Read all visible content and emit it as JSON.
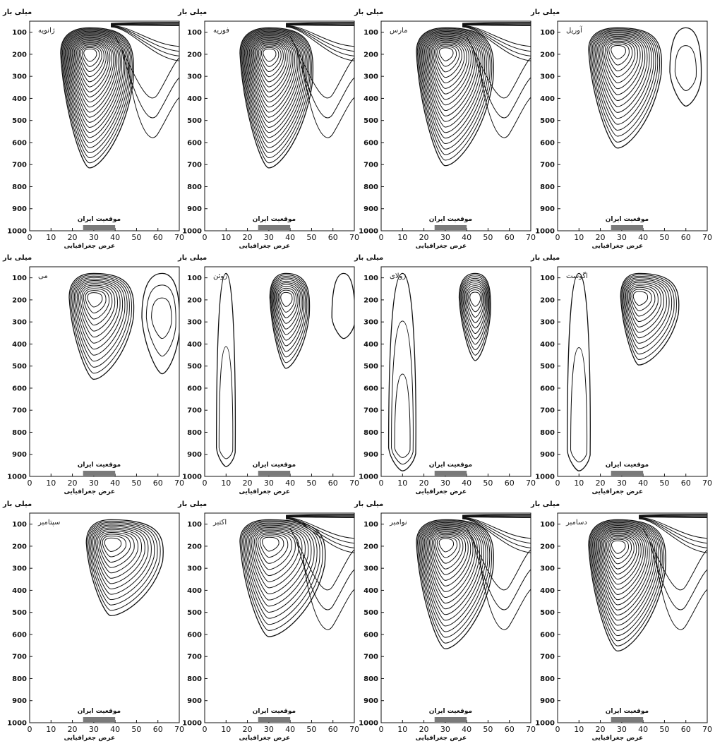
{
  "chart_data": [
    {
      "type": "contour",
      "month": "ژانویه",
      "ylabel": "میلی بار",
      "xlabel": "عرض جغرافیایی",
      "iran_label": "موقعیت ایران",
      "iran_range": [
        25,
        40
      ],
      "x_ticks": [
        0,
        10,
        20,
        30,
        40,
        50,
        60,
        70
      ],
      "y_ticks": [
        100,
        200,
        300,
        400,
        500,
        600,
        700,
        800,
        900,
        1000
      ],
      "xlim": [
        0,
        70
      ],
      "ylim": [
        1000,
        50
      ],
      "systems": [
        {
          "center": [
            28,
            195
          ],
          "lower_extent": 700,
          "rings": 22,
          "x_half": [
            12,
            20
          ]
        }
      ],
      "top_jet": true
    },
    {
      "type": "contour",
      "month": "فوریه",
      "ylabel": "میلی بار",
      "xlabel": "عرض جغرافیایی",
      "iran_label": "موقعیت ایران",
      "iran_range": [
        25,
        40
      ],
      "x_ticks": [
        0,
        10,
        20,
        30,
        40,
        50,
        60,
        70
      ],
      "y_ticks": [
        100,
        200,
        300,
        400,
        500,
        600,
        700,
        800,
        900,
        1000
      ],
      "xlim": [
        0,
        70
      ],
      "ylim": [
        1000,
        50
      ],
      "systems": [
        {
          "center": [
            30,
            195
          ],
          "lower_extent": 700,
          "rings": 22,
          "x_half": [
            12,
            20
          ]
        }
      ],
      "top_jet": true
    },
    {
      "type": "contour",
      "month": "مارس",
      "ylabel": "میلی بار",
      "xlabel": "عرض جغرافیایی",
      "iran_label": "موقعیت ایران",
      "iran_range": [
        25,
        40
      ],
      "x_ticks": [
        0,
        10,
        20,
        30,
        40,
        50,
        60,
        70
      ],
      "y_ticks": [
        100,
        200,
        300,
        400,
        500,
        600,
        700,
        800,
        900,
        1000
      ],
      "xlim": [
        0,
        70
      ],
      "ylim": [
        1000,
        50
      ],
      "systems": [
        {
          "center": [
            30,
            190
          ],
          "lower_extent": 690,
          "rings": 20,
          "x_half": [
            12,
            22
          ]
        }
      ],
      "top_jet": true
    },
    {
      "type": "contour",
      "month": "آوریل",
      "ylabel": "میلی بار",
      "xlabel": "عرض جغرافیایی",
      "iran_label": "موقعیت ایران",
      "iran_range": [
        25,
        40
      ],
      "x_ticks": [
        0,
        10,
        20,
        30,
        40,
        50,
        60,
        70
      ],
      "y_ticks": [
        100,
        200,
        300,
        400,
        500,
        600,
        700,
        800,
        900,
        1000
      ],
      "xlim": [
        0,
        70
      ],
      "ylim": [
        1000,
        50
      ],
      "systems": [
        {
          "center": [
            28,
            180
          ],
          "lower_extent": 610,
          "rings": 16,
          "x_half": [
            12,
            20
          ]
        },
        {
          "center": [
            60,
            280
          ],
          "lower_extent": 420,
          "rings": 2,
          "x_half": [
            6,
            6
          ]
        }
      ],
      "top_jet": false
    },
    {
      "type": "contour",
      "month": "می",
      "ylabel": "میلی بار",
      "xlabel": "عرض جغرافیایی",
      "iran_label": "موقعیت ایران",
      "iran_range": [
        25,
        40
      ],
      "x_ticks": [
        0,
        10,
        20,
        30,
        40,
        50,
        60,
        70
      ],
      "y_ticks": [
        100,
        200,
        300,
        400,
        500,
        600,
        700,
        800,
        900,
        1000
      ],
      "xlim": [
        0,
        70
      ],
      "ylim": [
        1000,
        50
      ],
      "systems": [
        {
          "center": [
            30,
            190
          ],
          "lower_extent": 545,
          "rings": 13,
          "x_half": [
            10,
            18
          ]
        },
        {
          "center": [
            62,
            280
          ],
          "lower_extent": 520,
          "rings": 3,
          "x_half": [
            8,
            7
          ]
        }
      ],
      "top_jet": false
    },
    {
      "type": "contour",
      "month": "ژوئن",
      "ylabel": "میلی بار",
      "xlabel": "عرض جغرافیایی",
      "iran_label": "موقعیت ایران",
      "iran_range": [
        25,
        40
      ],
      "x_ticks": [
        0,
        10,
        20,
        30,
        40,
        50,
        60,
        70
      ],
      "y_ticks": [
        100,
        200,
        300,
        400,
        500,
        600,
        700,
        800,
        900,
        1000
      ],
      "xlim": [
        0,
        70
      ],
      "ylim": [
        1000,
        50
      ],
      "systems": [
        {
          "center": [
            38,
            190
          ],
          "lower_extent": 495,
          "rings": 12,
          "x_half": [
            6,
            10
          ]
        },
        {
          "center": [
            65,
            280
          ],
          "lower_extent": 360,
          "rings": 1,
          "x_half": [
            4,
            4
          ]
        },
        {
          "center": [
            10,
            870
          ],
          "lower_extent": 940,
          "rings": 2,
          "x_half": [
            3,
            3
          ]
        }
      ],
      "top_jet": false
    },
    {
      "type": "contour",
      "month": "ژولای",
      "ylabel": "میلی بار",
      "xlabel": "عرض جغرافیایی",
      "iran_label": "موقعیت ایران",
      "iran_range": [
        25,
        40
      ],
      "x_ticks": [
        0,
        10,
        20,
        30,
        40,
        50,
        60,
        70
      ],
      "y_ticks": [
        100,
        200,
        300,
        400,
        500,
        600,
        700,
        800,
        900,
        1000
      ],
      "xlim": [
        0,
        70
      ],
      "ylim": [
        1000,
        50
      ],
      "systems": [
        {
          "center": [
            44,
            190
          ],
          "lower_extent": 460,
          "rings": 11,
          "x_half": [
            6,
            6
          ]
        },
        {
          "center": [
            10,
            870
          ],
          "lower_extent": 960,
          "rings": 3,
          "x_half": [
            5,
            5
          ]
        }
      ],
      "top_jet": false
    },
    {
      "type": "contour",
      "month": "اگوست",
      "ylabel": "میلی بار",
      "xlabel": "عرض جغرافیایی",
      "iran_label": "موقعیت ایران",
      "iran_range": [
        25,
        40
      ],
      "x_ticks": [
        0,
        10,
        20,
        30,
        40,
        50,
        60,
        70
      ],
      "y_ticks": [
        100,
        200,
        300,
        400,
        500,
        600,
        700,
        800,
        900,
        1000
      ],
      "xlim": [
        0,
        70
      ],
      "ylim": [
        1000,
        50
      ],
      "systems": [
        {
          "center": [
            38,
            185
          ],
          "lower_extent": 480,
          "rings": 12,
          "x_half": [
            7,
            18
          ]
        },
        {
          "center": [
            10,
            880
          ],
          "lower_extent": 960,
          "rings": 2,
          "x_half": [
            4,
            4
          ]
        }
      ],
      "top_jet": false
    },
    {
      "type": "contour",
      "month": "سپتامبر",
      "ylabel": "میلی بار",
      "xlabel": "عرض جغرافیایی",
      "iran_label": "موقعیت ایران",
      "iran_range": [
        25,
        40
      ],
      "x_ticks": [
        0,
        10,
        20,
        30,
        40,
        50,
        60,
        70
      ],
      "y_ticks": [
        100,
        200,
        300,
        400,
        500,
        600,
        700,
        800,
        900,
        1000
      ],
      "xlim": [
        0,
        70
      ],
      "ylim": [
        1000,
        50
      ],
      "systems": [
        {
          "center": [
            38,
            185
          ],
          "lower_extent": 500,
          "rings": 13,
          "x_half": [
            10,
            24
          ]
        }
      ],
      "top_jet": false
    },
    {
      "type": "contour",
      "month": "اکتبر",
      "ylabel": "میلی بار",
      "xlabel": "عرض جغرافیایی",
      "iran_label": "موقعیت ایران",
      "iran_range": [
        25,
        40
      ],
      "x_ticks": [
        0,
        10,
        20,
        30,
        40,
        50,
        60,
        70
      ],
      "y_ticks": [
        100,
        200,
        300,
        400,
        500,
        600,
        700,
        800,
        900,
        1000
      ],
      "xlim": [
        0,
        70
      ],
      "ylim": [
        1000,
        50
      ],
      "systems": [
        {
          "center": [
            30,
            180
          ],
          "lower_extent": 595,
          "rings": 15,
          "x_half": [
            12,
            26
          ]
        }
      ],
      "top_jet": true
    },
    {
      "type": "contour",
      "month": "نوامبر",
      "ylabel": "میلی بار",
      "xlabel": "عرض جغرافیایی",
      "iran_label": "موقعیت ایران",
      "iran_range": [
        25,
        40
      ],
      "x_ticks": [
        0,
        10,
        20,
        30,
        40,
        50,
        60,
        70
      ],
      "y_ticks": [
        100,
        200,
        300,
        400,
        500,
        600,
        700,
        800,
        900,
        1000
      ],
      "xlim": [
        0,
        70
      ],
      "ylim": [
        1000,
        50
      ],
      "systems": [
        {
          "center": [
            30,
            185
          ],
          "lower_extent": 650,
          "rings": 18,
          "x_half": [
            12,
            22
          ]
        }
      ],
      "top_jet": true
    },
    {
      "type": "contour",
      "month": "دسامبر",
      "ylabel": "میلی بار",
      "xlabel": "عرض جغرافیایی",
      "iran_label": "موقعیت ایران",
      "iran_range": [
        25,
        40
      ],
      "x_ticks": [
        0,
        10,
        20,
        30,
        40,
        50,
        60,
        70
      ],
      "y_ticks": [
        100,
        200,
        300,
        400,
        500,
        600,
        700,
        800,
        900,
        1000
      ],
      "xlim": [
        0,
        70
      ],
      "ylim": [
        1000,
        50
      ],
      "systems": [
        {
          "center": [
            28,
            195
          ],
          "lower_extent": 660,
          "rings": 20,
          "x_half": [
            12,
            22
          ]
        }
      ],
      "top_jet": true
    }
  ],
  "colors": {
    "line": "#111111",
    "iran_bar": "#7a7a7a",
    "background": "#ffffff"
  }
}
